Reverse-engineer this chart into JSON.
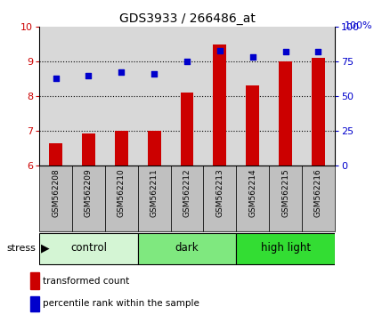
{
  "title": "GDS3933 / 266486_at",
  "samples": [
    "GSM562208",
    "GSM562209",
    "GSM562210",
    "GSM562211",
    "GSM562212",
    "GSM562213",
    "GSM562214",
    "GSM562215",
    "GSM562216"
  ],
  "transformed_count": [
    6.65,
    6.93,
    7.0,
    7.0,
    8.1,
    9.5,
    8.3,
    9.0,
    9.1
  ],
  "percentile_rank": [
    63,
    65,
    67,
    66,
    75,
    83,
    78,
    82,
    82
  ],
  "groups": [
    {
      "label": "control",
      "start": 0,
      "end": 3,
      "color": "#d4f5d4"
    },
    {
      "label": "dark",
      "start": 3,
      "end": 6,
      "color": "#7fe87f"
    },
    {
      "label": "high light",
      "start": 6,
      "end": 9,
      "color": "#33dd33"
    }
  ],
  "ylim_left": [
    6,
    10
  ],
  "ylim_right": [
    0,
    100
  ],
  "yticks_left": [
    6,
    7,
    8,
    9,
    10
  ],
  "yticks_right": [
    0,
    25,
    50,
    75,
    100
  ],
  "bar_color": "#cc0000",
  "dot_color": "#0000cc",
  "plot_bg_color": "#d8d8d8",
  "label_bg_color": "#c0c0c0",
  "stress_label": "stress",
  "legend_bar_label": "transformed count",
  "legend_dot_label": "percentile rank within the sample",
  "title_fontsize": 10,
  "tick_fontsize": 8,
  "sample_fontsize": 6.5,
  "group_fontsize": 8.5,
  "legend_fontsize": 7.5,
  "grid_yticks": [
    7,
    8,
    9
  ]
}
